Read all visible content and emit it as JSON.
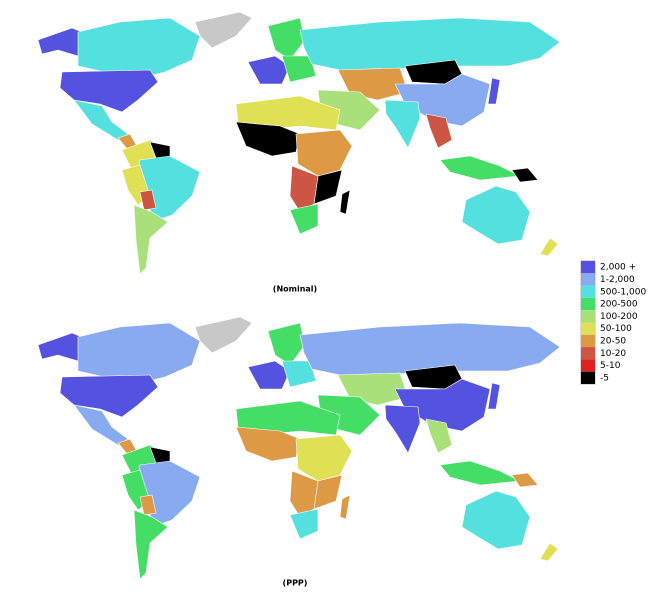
{
  "maps": [
    {
      "label": "(Nominal)"
    },
    {
      "label": "(PPP)"
    }
  ],
  "legend": {
    "items": [
      {
        "label": "2,000 +",
        "color": "#5353e0"
      },
      {
        "label": "1-2,000",
        "color": "#88aaf0"
      },
      {
        "label": "500-1,000",
        "color": "#55e0e0"
      },
      {
        "label": "200-500",
        "color": "#44dd66"
      },
      {
        "label": "100-200",
        "color": "#aae07a"
      },
      {
        "label": "50-100",
        "color": "#e0e055"
      },
      {
        "label": "20-50",
        "color": "#dd9944"
      },
      {
        "label": "10-20",
        "color": "#cc5544"
      },
      {
        "label": "5-10",
        "color": "#dd2222"
      },
      {
        "label": "-5",
        "color": "#000000"
      }
    ]
  }
}
